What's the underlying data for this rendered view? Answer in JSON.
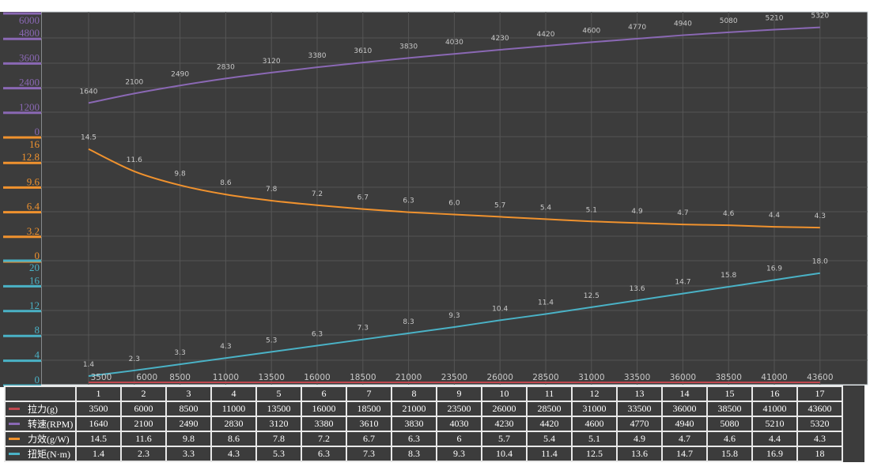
{
  "chart_data": {
    "type": "line",
    "x": [
      1,
      2,
      3,
      4,
      5,
      6,
      7,
      8,
      9,
      10,
      11,
      12,
      13,
      14,
      15,
      16,
      17
    ],
    "x_tick_labels": [
      "3500",
      "6000",
      "8500",
      "11000",
      "13500",
      "16000",
      "18500",
      "21000",
      "23500",
      "26000",
      "28500",
      "31000",
      "33500",
      "36000",
      "38500",
      "41000",
      "43600"
    ],
    "grid": true,
    "series": [
      {
        "name": "拉力(g)",
        "color": "#c0484f",
        "values": [
          3500,
          6000,
          8500,
          11000,
          13500,
          16000,
          18500,
          21000,
          23500,
          26000,
          28500,
          31000,
          33500,
          36000,
          38500,
          41000,
          43600
        ],
        "table": [
          "3500",
          "6000",
          "8500",
          "11000",
          "13500",
          "16000",
          "18500",
          "21000",
          "23500",
          "26000",
          "28500",
          "31000",
          "33500",
          "36000",
          "38500",
          "41000",
          "43600"
        ]
      },
      {
        "name": "转速(RPM)",
        "color": "#8a68b4",
        "values": [
          1640,
          2100,
          2490,
          2830,
          3120,
          3380,
          3610,
          3830,
          4030,
          4230,
          4420,
          4600,
          4770,
          4940,
          5080,
          5210,
          5320
        ],
        "ylim": [
          0,
          6000
        ],
        "ticks": [
          "0",
          "1200",
          "2400",
          "3600",
          "4800",
          "6000"
        ],
        "point_labels": [
          "1640",
          "2100",
          "2490",
          "2830",
          "3120",
          "3380",
          "3610",
          "3830",
          "4030",
          "4230",
          "4420",
          "4600",
          "4770",
          "4940",
          "5080",
          "5210",
          "5320"
        ],
        "table": [
          "1640",
          "2100",
          "2490",
          "2830",
          "3120",
          "3380",
          "3610",
          "3830",
          "4030",
          "4230",
          "4420",
          "4600",
          "4770",
          "4940",
          "5080",
          "5210",
          "5320"
        ]
      },
      {
        "name": "力效(g/W)",
        "color": "#f0922e",
        "values": [
          14.5,
          11.6,
          9.8,
          8.6,
          7.8,
          7.2,
          6.7,
          6.3,
          6.0,
          5.7,
          5.4,
          5.1,
          4.9,
          4.7,
          4.6,
          4.4,
          4.3
        ],
        "ylim": [
          0,
          16
        ],
        "ticks": [
          "0",
          "3.2",
          "6.4",
          "9.6",
          "12.8",
          "16"
        ],
        "point_labels": [
          "14.5",
          "11.6",
          "9.8",
          "8.6",
          "7.8",
          "7.2",
          "6.7",
          "6.3",
          "6.0",
          "5.7",
          "5.4",
          "5.1",
          "4.9",
          "4.7",
          "4.6",
          "4.4",
          "4.3"
        ],
        "table": [
          "14.5",
          "11.6",
          "9.8",
          "8.6",
          "7.8",
          "7.2",
          "6.7",
          "6.3",
          "6",
          "5.7",
          "5.4",
          "5.1",
          "4.9",
          "4.7",
          "4.6",
          "4.4",
          "4.3"
        ]
      },
      {
        "name": "扭矩(N·m)",
        "color": "#4ab2c6",
        "values": [
          1.4,
          2.3,
          3.3,
          4.3,
          5.3,
          6.3,
          7.3,
          8.3,
          9.3,
          10.4,
          11.4,
          12.5,
          13.6,
          14.7,
          15.8,
          16.9,
          18.0
        ],
        "ylim": [
          0,
          20
        ],
        "ticks": [
          "0",
          "4",
          "8",
          "12",
          "16",
          "20"
        ],
        "point_labels": [
          "1.4",
          "2.3",
          "3.3",
          "4.3",
          "5.3",
          "6.3",
          "7.3",
          "8.3",
          "9.3",
          "10.4",
          "11.4",
          "12.5",
          "13.6",
          "14.7",
          "15.8",
          "16.9",
          "18.0"
        ],
        "table": [
          "1.4",
          "2.3",
          "3.3",
          "4.3",
          "5.3",
          "6.3",
          "7.3",
          "8.3",
          "9.3",
          "10.4",
          "11.4",
          "12.5",
          "13.6",
          "14.7",
          "15.8",
          "16.9",
          "18"
        ]
      }
    ],
    "table_header": [
      "1",
      "2",
      "3",
      "4",
      "5",
      "6",
      "7",
      "8",
      "9",
      "10",
      "11",
      "12",
      "13",
      "14",
      "15",
      "16",
      "17"
    ]
  }
}
